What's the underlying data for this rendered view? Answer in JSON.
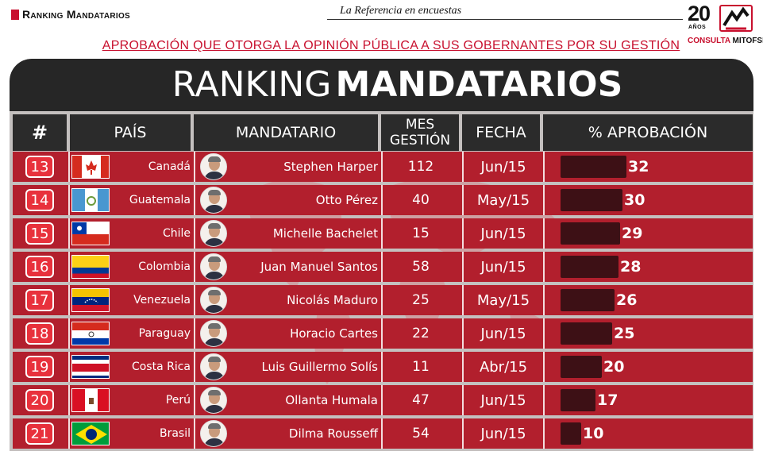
{
  "header": {
    "brand": "Ranking Mandatarios",
    "tagline": "La Referencia en encuestas",
    "logo": {
      "years": "20",
      "anos": "AÑOS",
      "consulta": "CONSULTA",
      "mitofsky": "MITOFSKY"
    },
    "subtitle": "APROBACIÓN QUE OTORGA LA OPINIÓN PÚBLICA A SUS GOBERNANTES POR SU GESTIÓN"
  },
  "board": {
    "title_light": "RANKING",
    "title_bold": "MANDATARIOS",
    "columns": {
      "rank": "#",
      "country": "PAÍS",
      "leader": "MANDATARIO",
      "months": "MES GESTIÓN",
      "date": "FECHA",
      "approval": "% APROBACIÓN"
    }
  },
  "colors": {
    "brand_red": "#c8102e",
    "row_red": "#b21f2d",
    "header_dark": "#262626",
    "bar_dark": "#3d1015"
  },
  "rows": [
    {
      "rank": "13",
      "country": "Canadá",
      "flag": "canada-flag",
      "leader": "Stephen Harper",
      "months": "112",
      "date": "Jun/15",
      "approval": "32",
      "approval_value": 32
    },
    {
      "rank": "14",
      "country": "Guatemala",
      "flag": "guatemala-flag",
      "leader": "Otto Pérez",
      "months": "40",
      "date": "May/15",
      "approval": "30",
      "approval_value": 30
    },
    {
      "rank": "15",
      "country": "Chile",
      "flag": "chile-flag",
      "leader": "Michelle Bachelet",
      "months": "15",
      "date": "Jun/15",
      "approval": "29",
      "approval_value": 29
    },
    {
      "rank": "16",
      "country": "Colombia",
      "flag": "colombia-flag",
      "leader": "Juan Manuel Santos",
      "months": "58",
      "date": "Jun/15",
      "approval": "28",
      "approval_value": 28
    },
    {
      "rank": "17",
      "country": "Venezuela",
      "flag": "venezuela-flag",
      "leader": "Nicolás Maduro",
      "months": "25",
      "date": "May/15",
      "approval": "26",
      "approval_value": 26
    },
    {
      "rank": "18",
      "country": "Paraguay",
      "flag": "paraguay-flag",
      "leader": "Horacio Cartes",
      "months": "22",
      "date": "Jun/15",
      "approval": "25",
      "approval_value": 25
    },
    {
      "rank": "19",
      "country": "Costa Rica",
      "flag": "costa-rica-flag",
      "leader": "Luis Guillermo Solís",
      "months": "11",
      "date": "Abr/15",
      "approval": "20",
      "approval_value": 20
    },
    {
      "rank": "20",
      "country": "Perú",
      "flag": "peru-flag",
      "leader": "Ollanta Humala",
      "months": "47",
      "date": "Jun/15",
      "approval": "17",
      "approval_value": 17
    },
    {
      "rank": "21",
      "country": "Brasil",
      "flag": "brazil-flag",
      "leader": "Dilma Rousseff",
      "months": "54",
      "date": "Jun/15",
      "approval": "10",
      "approval_value": 10
    }
  ]
}
